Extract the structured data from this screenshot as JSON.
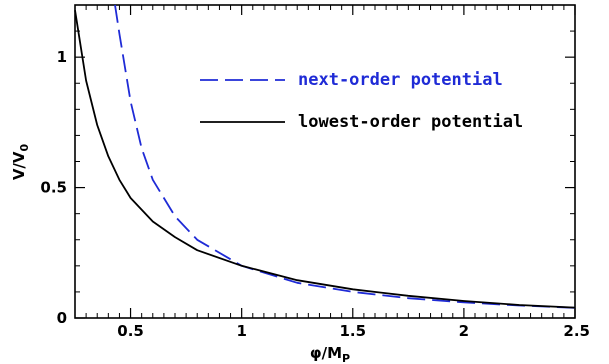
{
  "chart_data": {
    "type": "line",
    "title": "",
    "xlabel": {
      "main": "φ/M",
      "sub": "P"
    },
    "ylabel": {
      "main": "V/V",
      "sub": "0"
    },
    "xlim": [
      0.25,
      2.5
    ],
    "ylim": [
      0,
      1.2
    ],
    "x_ticks": [
      {
        "value": 0.5,
        "label": "0.5"
      },
      {
        "value": 1,
        "label": "1"
      },
      {
        "value": 1.5,
        "label": "1.5"
      },
      {
        "value": 2,
        "label": "2"
      },
      {
        "value": 2.5,
        "label": "2.5"
      }
    ],
    "y_ticks": [
      {
        "value": 0,
        "label": "0"
      },
      {
        "value": 0.5,
        "label": "0.5"
      },
      {
        "value": 1,
        "label": "1"
      }
    ],
    "grid": false,
    "legend_position": "top-right",
    "series": [
      {
        "name": "next-order potential",
        "color": "#1f2bd6",
        "dash": "dashed",
        "x": [
          0.43,
          0.45,
          0.5,
          0.55,
          0.6,
          0.7,
          0.8,
          1.0,
          1.25,
          1.5,
          1.75,
          2.0,
          2.25,
          2.5
        ],
        "y": [
          1.2,
          1.09,
          0.83,
          0.65,
          0.53,
          0.39,
          0.3,
          0.2,
          0.135,
          0.1,
          0.076,
          0.06,
          0.048,
          0.039
        ]
      },
      {
        "name": "lowest-order potential",
        "color": "#000000",
        "dash": "solid",
        "x": [
          0.25,
          0.3,
          0.35,
          0.4,
          0.45,
          0.5,
          0.6,
          0.7,
          0.8,
          1.0,
          1.25,
          1.5,
          1.75,
          2.0,
          2.25,
          2.5
        ],
        "y": [
          1.18,
          0.91,
          0.74,
          0.62,
          0.53,
          0.46,
          0.37,
          0.31,
          0.26,
          0.2,
          0.145,
          0.11,
          0.085,
          0.065,
          0.05,
          0.04
        ]
      }
    ]
  }
}
